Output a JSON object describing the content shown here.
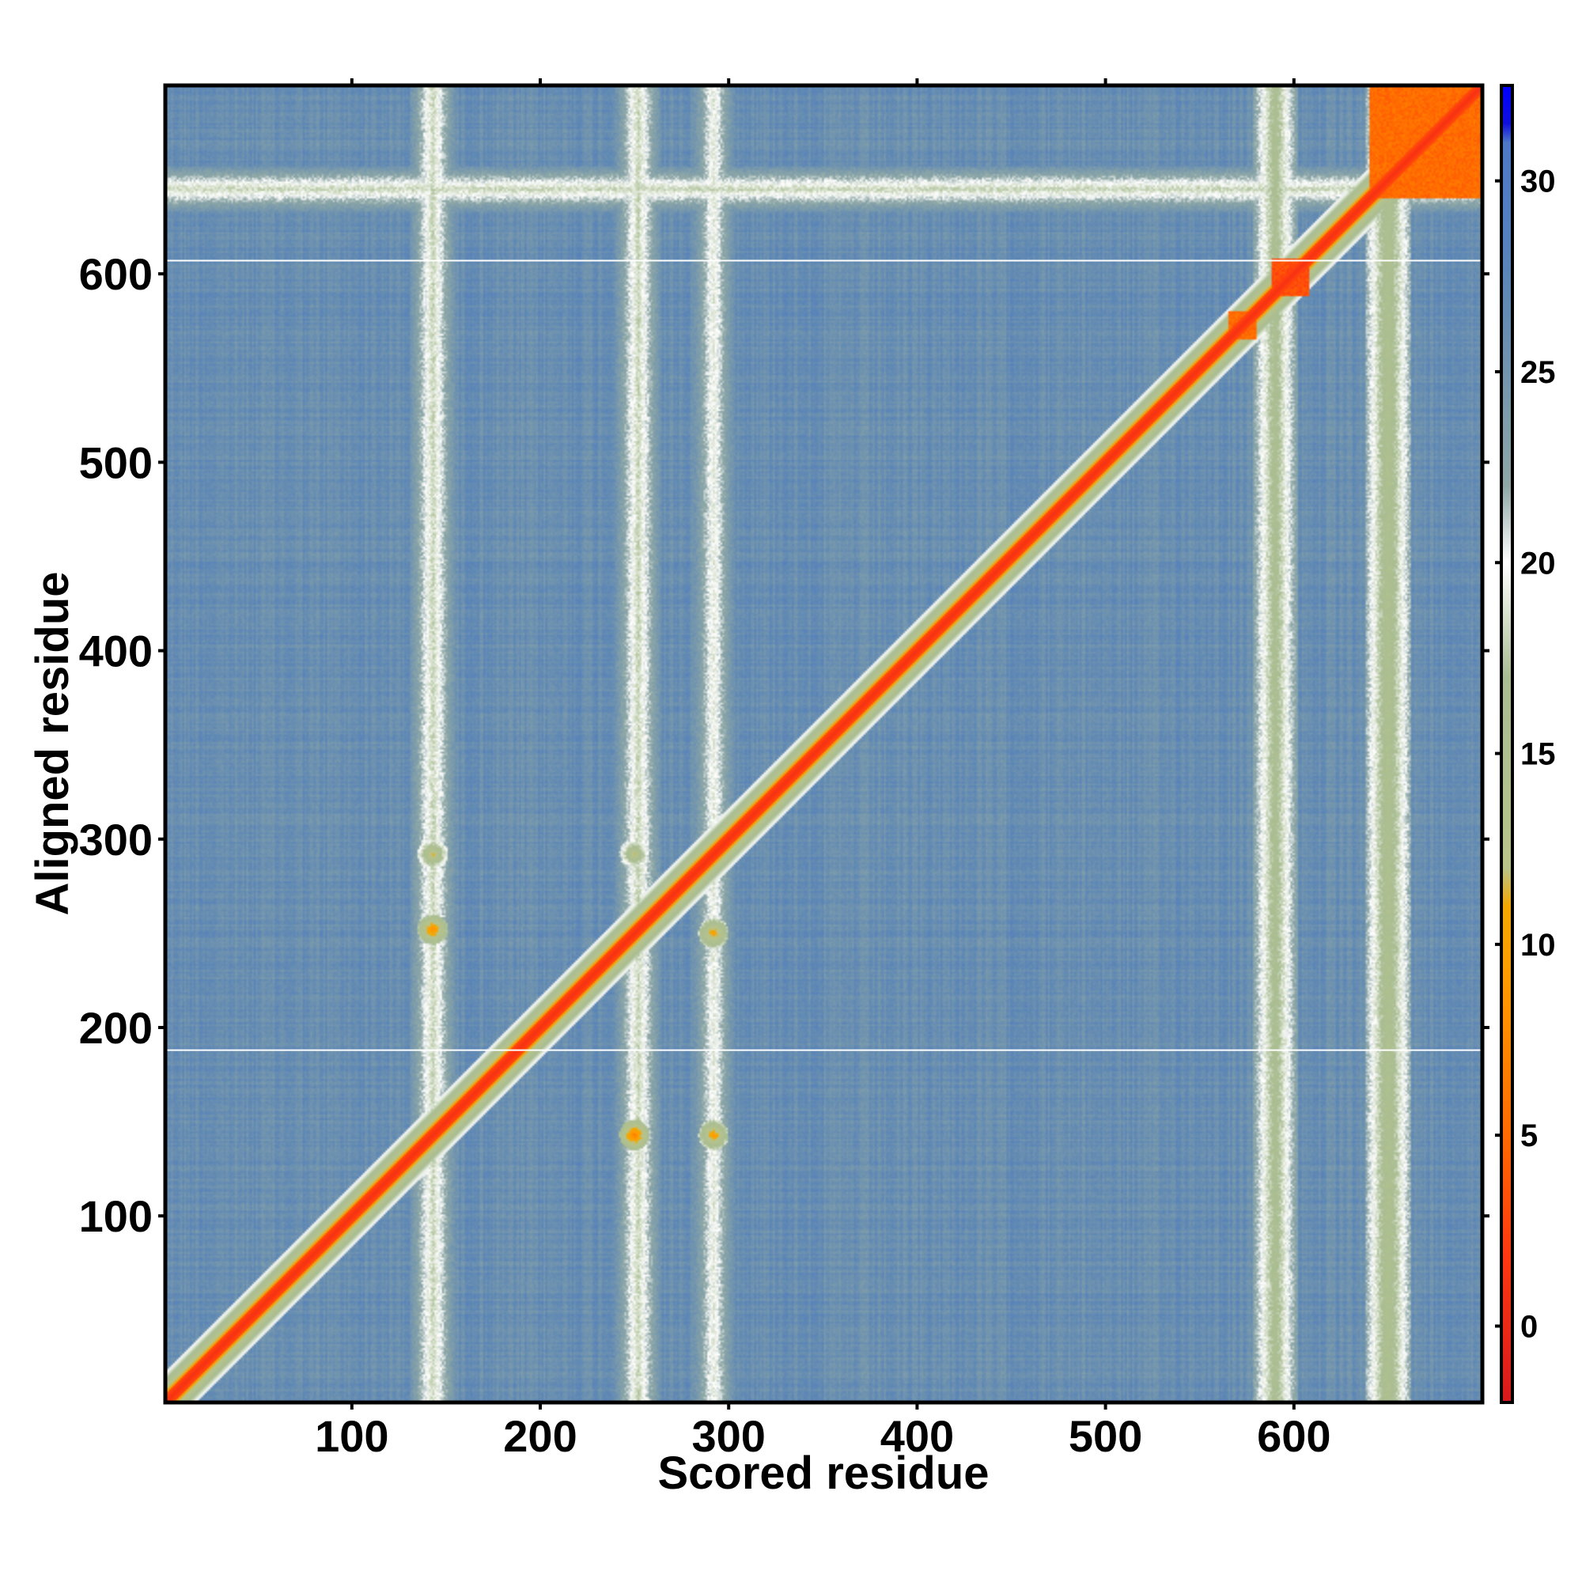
{
  "chart_data": {
    "type": "heatmap",
    "title": "",
    "xlabel": "Scored residue",
    "ylabel": "Aligned residue",
    "xlim": [
      1,
      700
    ],
    "ylim": [
      1,
      700
    ],
    "x_ticks": [
      100,
      200,
      300,
      400,
      500,
      600
    ],
    "y_ticks": [
      100,
      200,
      300,
      400,
      500,
      600
    ],
    "colorbar": {
      "range": [
        -2,
        32.5
      ],
      "ticks": [
        0,
        5,
        10,
        15,
        20,
        25,
        30
      ],
      "stops": [
        {
          "value": -2,
          "color": "#d7191c"
        },
        {
          "value": 2,
          "color": "#ff3a10"
        },
        {
          "value": 5,
          "color": "#ff6a00"
        },
        {
          "value": 9,
          "color": "#ff9a00"
        },
        {
          "value": 11,
          "color": "#f4a800"
        },
        {
          "value": 12,
          "color": "#b8c48a"
        },
        {
          "value": 17,
          "color": "#a9bd93"
        },
        {
          "value": 20,
          "color": "#ffffff"
        },
        {
          "value": 22,
          "color": "#8fa8a6"
        },
        {
          "value": 27,
          "color": "#5f88b4"
        },
        {
          "value": 28.5,
          "color": "#5580bf"
        },
        {
          "value": 31,
          "color": "#4d78c6"
        },
        {
          "value": 31.5,
          "color": "#1010dd"
        },
        {
          "value": 32.5,
          "color": "#0000ff"
        }
      ]
    },
    "background_value": 26,
    "diagonal_value": 1,
    "diagonal_halo_value": 6,
    "white_rows": [
      188,
      607
    ],
    "high_confidence_blocks": [
      {
        "x": [
          640,
          700
        ],
        "y": [
          640,
          700
        ],
        "value": 4
      },
      {
        "x": [
          588,
          608
        ],
        "y": [
          588,
          608
        ],
        "value": 2
      },
      {
        "x": [
          565,
          580
        ],
        "y": [
          565,
          580
        ],
        "value": 4
      }
    ],
    "off_diagonal_contacts": [
      {
        "x": 143,
        "y": 252,
        "value": 7
      },
      {
        "x": 143,
        "y": 292,
        "value": 10
      },
      {
        "x": 250,
        "y": 143,
        "value": 6
      },
      {
        "x": 292,
        "y": 143,
        "value": 8
      },
      {
        "x": 250,
        "y": 292,
        "value": 11
      },
      {
        "x": 292,
        "y": 250,
        "value": 8
      }
    ],
    "weak_bands": [
      {
        "axis": "x",
        "center": 143,
        "value": 18
      },
      {
        "axis": "x",
        "center": 252,
        "value": 18
      },
      {
        "axis": "x",
        "center": 292,
        "value": 19
      },
      {
        "axis": "x",
        "center": 590,
        "value": 16
      },
      {
        "axis": "x",
        "center": 650,
        "value": 15
      },
      {
        "axis": "y",
        "center": 645,
        "value": 18
      }
    ]
  }
}
